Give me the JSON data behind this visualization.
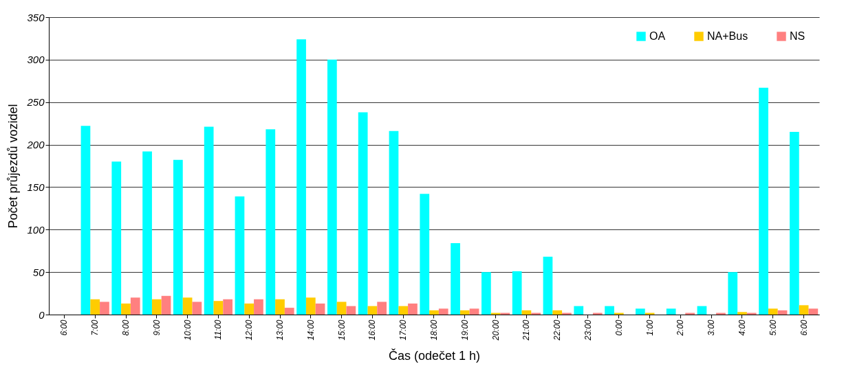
{
  "chart_data": {
    "type": "bar",
    "xlabel": "Čas (odečet 1 h)",
    "ylabel": "Počet průjezdů vozidel",
    "categories": [
      "6:00",
      "7:00",
      "8:00",
      "9:00",
      "10:00",
      "11:00",
      "12:00",
      "13:00",
      "14:00",
      "15:00",
      "16:00",
      "17:00",
      "18:00",
      "19:00",
      "20:00",
      "21:00",
      "22:00",
      "23:00",
      "0:00",
      "1:00",
      "2:00",
      "3:00",
      "4:00",
      "5:00",
      "6:00"
    ],
    "series": [
      {
        "name": "OA",
        "color": "#00ffff",
        "values": [
          0,
          222,
          180,
          192,
          182,
          221,
          139,
          218,
          324,
          300,
          238,
          216,
          142,
          84,
          50,
          51,
          68,
          10,
          10,
          7,
          7,
          10,
          50,
          267,
          215
        ]
      },
      {
        "name": "NA+Bus",
        "color": "#ffcc00",
        "values": [
          0,
          18,
          13,
          18,
          20,
          16,
          13,
          18,
          20,
          15,
          10,
          10,
          5,
          5,
          2,
          5,
          5,
          0,
          2,
          2,
          0,
          0,
          3,
          7,
          11
        ]
      },
      {
        "name": "NS",
        "color": "#ff8080",
        "values": [
          0,
          15,
          20,
          22,
          15,
          18,
          18,
          8,
          13,
          10,
          15,
          13,
          7,
          7,
          2,
          2,
          2,
          2,
          0,
          0,
          2,
          2,
          2,
          5,
          7
        ]
      }
    ],
    "ylim": [
      0,
      350
    ],
    "yticks": [
      0,
      50,
      100,
      150,
      200,
      250,
      300,
      350
    ],
    "grid": "y",
    "legend": "top right"
  }
}
